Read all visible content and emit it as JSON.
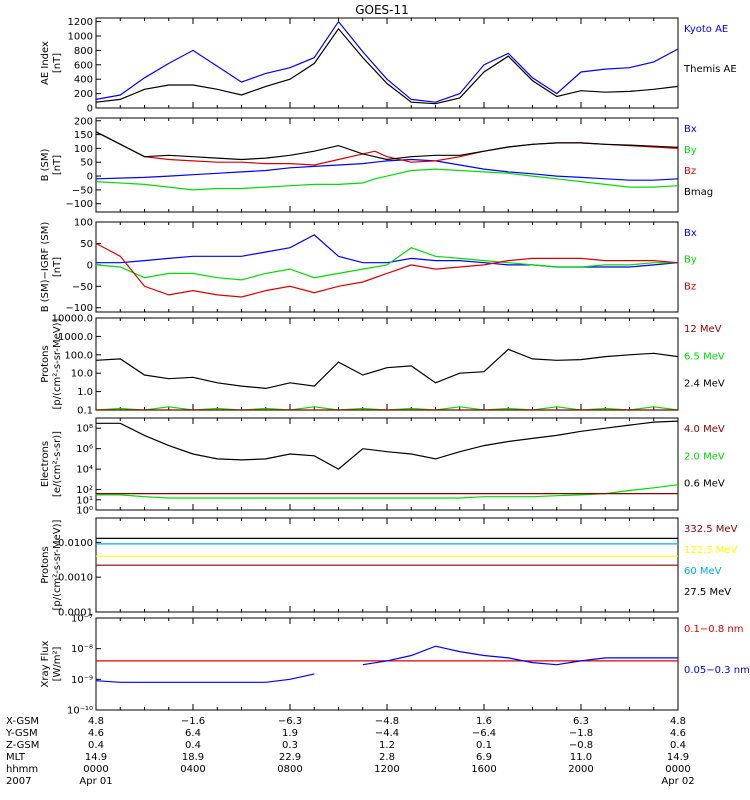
{
  "title": "GOES-11",
  "colors": {
    "black": "#000000",
    "blue": "#0000ff",
    "green": "#00dd00",
    "red": "#dd0000",
    "darkred": "#8b0000",
    "yellow": "#ffff00",
    "cyan": "#00aaff"
  },
  "chart_data": [
    {
      "type": "line",
      "ylabel": [
        "AE Index",
        "[nT]"
      ],
      "yscale": "linear",
      "ylim": [
        0,
        1250
      ],
      "yticks": [
        0,
        200,
        400,
        600,
        800,
        1000,
        1200
      ],
      "ytick_labels": [
        "0",
        "200",
        "400",
        "600",
        "800",
        "1000",
        "1200"
      ],
      "legend": [
        {
          "name": "Kyoto AE",
          "color": "#0000ff"
        },
        {
          "name": "Themis AE",
          "color": "#000000"
        }
      ],
      "x": [
        0,
        1,
        2,
        3,
        4,
        5,
        6,
        7,
        8,
        9,
        10,
        11,
        12,
        13,
        14,
        15,
        16,
        17,
        18,
        19,
        20,
        21,
        22,
        23,
        24
      ],
      "series": [
        {
          "name": "Kyoto AE",
          "color": "#0000ff",
          "values": [
            120,
            180,
            420,
            620,
            800,
            580,
            360,
            480,
            560,
            700,
            1200,
            780,
            400,
            120,
            80,
            200,
            600,
            760,
            420,
            200,
            500,
            540,
            560,
            640,
            820
          ]
        },
        {
          "name": "Themis AE",
          "color": "#000000",
          "values": [
            80,
            120,
            260,
            320,
            320,
            260,
            180,
            300,
            400,
            620,
            1100,
            700,
            340,
            80,
            60,
            140,
            500,
            720,
            380,
            160,
            240,
            220,
            230,
            260,
            300
          ]
        }
      ]
    },
    {
      "type": "line",
      "ylabel": [
        "B (SM)",
        "[nT]"
      ],
      "yscale": "linear",
      "ylim": [
        -130,
        210
      ],
      "yticks": [
        -100,
        -50,
        0,
        50,
        100,
        150,
        200
      ],
      "ytick_labels": [
        "−100",
        "−50",
        "0",
        "50",
        "100",
        "150",
        "200"
      ],
      "legend": [
        {
          "name": "Bx",
          "color": "#0000ff"
        },
        {
          "name": "By",
          "color": "#00dd00"
        },
        {
          "name": "Bz",
          "color": "#dd0000"
        },
        {
          "name": "Bmag",
          "color": "#000000"
        }
      ],
      "x": [
        0,
        2,
        3,
        4,
        5,
        6,
        7,
        8,
        9,
        10,
        11,
        11.5,
        12,
        13,
        14,
        15,
        16,
        17,
        18,
        19,
        20,
        21,
        22,
        23,
        24
      ],
      "series": [
        {
          "name": "Bx",
          "color": "#0000ff",
          "values": [
            -10,
            -5,
            0,
            5,
            10,
            15,
            20,
            30,
            35,
            40,
            45,
            50,
            55,
            60,
            55,
            40,
            25,
            15,
            8,
            0,
            -5,
            -10,
            -15,
            -15,
            -10
          ]
        },
        {
          "name": "By",
          "color": "#00dd00",
          "values": [
            -20,
            -30,
            -40,
            -50,
            -45,
            -45,
            -40,
            -35,
            -30,
            -30,
            -25,
            -10,
            0,
            20,
            25,
            20,
            15,
            10,
            0,
            -10,
            -20,
            -30,
            -40,
            -40,
            -35
          ]
        },
        {
          "name": "Bz",
          "color": "#dd0000",
          "values": [
            160,
            70,
            60,
            55,
            50,
            50,
            45,
            45,
            40,
            60,
            80,
            90,
            70,
            50,
            55,
            70,
            90,
            105,
            115,
            120,
            120,
            115,
            110,
            105,
            100
          ]
        },
        {
          "name": "Bmag",
          "color": "#000000",
          "values": [
            160,
            70,
            75,
            70,
            65,
            60,
            65,
            75,
            90,
            110,
            80,
            70,
            60,
            70,
            75,
            75,
            90,
            105,
            115,
            120,
            120,
            115,
            112,
            108,
            104
          ]
        }
      ]
    },
    {
      "type": "line",
      "ylabel": [
        "B (SM)−IGRF (SM)",
        "[nT]"
      ],
      "yscale": "linear",
      "ylim": [
        -110,
        100
      ],
      "yticks": [
        -100,
        -50,
        0,
        50,
        100
      ],
      "ytick_labels": [
        "−100",
        "−50",
        "0",
        "50",
        "100"
      ],
      "legend": [
        {
          "name": "Bx",
          "color": "#0000ff"
        },
        {
          "name": "By",
          "color": "#00dd00"
        },
        {
          "name": "Bz",
          "color": "#dd0000"
        }
      ],
      "x": [
        0,
        1,
        2,
        3,
        4,
        5,
        6,
        7,
        8,
        9,
        10,
        11,
        12,
        13,
        14,
        15,
        16,
        17,
        18,
        19,
        20,
        21,
        22,
        23,
        24
      ],
      "series": [
        {
          "name": "Bx",
          "color": "#0000ff",
          "values": [
            5,
            5,
            10,
            15,
            20,
            20,
            20,
            30,
            40,
            70,
            20,
            5,
            5,
            15,
            10,
            10,
            5,
            0,
            0,
            -5,
            -5,
            -5,
            -5,
            0,
            5
          ]
        },
        {
          "name": "By",
          "color": "#00dd00",
          "values": [
            0,
            -5,
            -30,
            -20,
            -20,
            -30,
            -35,
            -20,
            -10,
            -30,
            -20,
            -10,
            0,
            40,
            20,
            15,
            10,
            5,
            0,
            -5,
            -5,
            0,
            0,
            5,
            5
          ]
        },
        {
          "name": "Bz",
          "color": "#dd0000",
          "values": [
            50,
            20,
            -50,
            -70,
            -60,
            -70,
            -75,
            -60,
            -50,
            -65,
            -50,
            -40,
            -20,
            0,
            -10,
            -5,
            0,
            10,
            15,
            15,
            15,
            10,
            10,
            10,
            5
          ]
        }
      ]
    },
    {
      "type": "line",
      "ylabel": [
        "Protons",
        "[p/(cm²-s-sr-MeV)]"
      ],
      "yscale": "log",
      "ylim": [
        0.1,
        10000
      ],
      "yticks": [
        0.1,
        1,
        10,
        100,
        1000,
        10000
      ],
      "ytick_labels": [
        "0.1",
        "1.0",
        "10.0",
        "100.0",
        "1000.0",
        "10000.0"
      ],
      "legend": [
        {
          "name": "12 MeV",
          "color": "#8b0000"
        },
        {
          "name": "6.5 MeV",
          "color": "#00dd00"
        },
        {
          "name": "2.4 MeV",
          "color": "#000000"
        }
      ],
      "x": [
        0,
        1,
        2,
        3,
        4,
        5,
        6,
        7,
        8,
        9,
        10,
        11,
        12,
        13,
        14,
        15,
        16,
        17,
        18,
        19,
        20,
        21,
        22,
        23,
        24
      ],
      "series": [
        {
          "name": "2.4 MeV",
          "color": "#000000",
          "values": [
            50,
            60,
            8,
            5,
            6,
            3,
            2,
            1.5,
            3,
            2,
            40,
            8,
            20,
            25,
            3,
            10,
            12,
            200,
            60,
            50,
            55,
            80,
            100,
            120,
            80
          ]
        },
        {
          "name": "6.5 MeV",
          "color": "#00dd00",
          "values": [
            0.1,
            0.12,
            0.1,
            0.15,
            0.1,
            0.12,
            0.1,
            0.12,
            0.1,
            0.15,
            0.1,
            0.12,
            0.1,
            0.12,
            0.1,
            0.15,
            0.1,
            0.12,
            0.1,
            0.15,
            0.1,
            0.12,
            0.1,
            0.15,
            0.1
          ]
        },
        {
          "name": "12 MeV",
          "color": "#8b0000",
          "values": [
            0.1,
            0.1,
            0.1,
            0.1,
            0.1,
            0.1,
            0.1,
            0.1,
            0.1,
            0.1,
            0.1,
            0.1,
            0.1,
            0.1,
            0.1,
            0.1,
            0.1,
            0.1,
            0.1,
            0.1,
            0.1,
            0.1,
            0.1,
            0.1,
            0.1
          ]
        }
      ]
    },
    {
      "type": "line",
      "ylabel": [
        "Electrons",
        "[e/(cm²-s-sr)]"
      ],
      "yscale": "log",
      "ylim": [
        1,
        1000000000
      ],
      "yticks": [
        1,
        10,
        100,
        10000,
        1000000,
        100000000
      ],
      "ytick_labels": [
        "10⁰",
        "10¹",
        "10²",
        "10⁴",
        "10⁶",
        "10⁸"
      ],
      "legend": [
        {
          "name": "4.0 MeV",
          "color": "#8b0000"
        },
        {
          "name": "2.0 MeV",
          "color": "#00dd00"
        },
        {
          "name": "0.6 MeV",
          "color": "#000000"
        }
      ],
      "x": [
        0,
        1,
        2,
        3,
        4,
        5,
        6,
        7,
        8,
        9,
        10,
        11,
        12,
        13,
        14,
        15,
        16,
        17,
        18,
        19,
        20,
        21,
        22,
        23,
        24
      ],
      "series": [
        {
          "name": "0.6 MeV",
          "color": "#000000",
          "values": [
            300000000,
            300000000,
            20000000,
            2000000,
            300000,
            100000,
            80000,
            100000,
            300000,
            200000,
            10000,
            1000000,
            500000,
            300000,
            100000,
            500000,
            2000000,
            5000000,
            10000000,
            20000000,
            50000000,
            100000000,
            200000000,
            400000000,
            500000000
          ]
        },
        {
          "name": "2.0 MeV",
          "color": "#00dd00",
          "values": [
            30,
            30,
            20,
            15,
            15,
            15,
            15,
            15,
            15,
            15,
            15,
            15,
            15,
            15,
            15,
            15,
            20,
            20,
            20,
            25,
            30,
            40,
            80,
            150,
            300
          ]
        },
        {
          "name": "4.0 MeV",
          "color": "#8b0000",
          "values": [
            40,
            40,
            40,
            40,
            40,
            40,
            40,
            40,
            40,
            40,
            40,
            40,
            40,
            40,
            40,
            40,
            40,
            40,
            40,
            40,
            40,
            40,
            40,
            40,
            40
          ]
        }
      ]
    },
    {
      "type": "line",
      "ylabel": [
        "Protons",
        "[p/(cm²-s-sr-MeV)]"
      ],
      "yscale": "log",
      "ylim": [
        0.0001,
        0.05
      ],
      "yticks": [
        0.0001,
        0.001,
        0.01
      ],
      "ytick_labels": [
        "0.0001",
        "0.0010",
        "0.0100"
      ],
      "legend": [
        {
          "name": "332.5 MeV",
          "color": "#8b0000"
        },
        {
          "name": "122.5 MeV",
          "color": "#ffff00"
        },
        {
          "name": "60 MeV",
          "color": "#00aaff"
        },
        {
          "name": "27.5 MeV",
          "color": "#000000"
        }
      ],
      "x": [
        0,
        24
      ],
      "series": [
        {
          "name": "27.5 MeV",
          "color": "#000000",
          "values": [
            0.013,
            0.013
          ]
        },
        {
          "name": "60 MeV",
          "color": "#00aaff",
          "values": [
            0.009,
            0.009
          ]
        },
        {
          "name": "122.5 MeV",
          "color": "#ffff00",
          "values": [
            0.004,
            0.004
          ]
        },
        {
          "name": "332.5 MeV",
          "color": "#8b0000",
          "values": [
            0.0022,
            0.0022
          ]
        }
      ]
    },
    {
      "type": "line",
      "ylabel": [
        "Xray Flux",
        "[W/m²]"
      ],
      "yscale": "log",
      "ylim": [
        1e-10,
        1e-07
      ],
      "yticks": [
        1e-10,
        1e-09,
        1e-08,
        1e-07
      ],
      "ytick_labels": [
        "10⁻¹⁰",
        "10⁻⁹",
        "10⁻⁸",
        "10⁻⁷"
      ],
      "legend": [
        {
          "name": "0.1−0.8 nm",
          "color": "#dd0000"
        },
        {
          "name": "0.05−0.3 nm",
          "color": "#0000ff"
        }
      ],
      "x": [
        0,
        1,
        2,
        3,
        4,
        5,
        6,
        7,
        8,
        9,
        10,
        11,
        12,
        13,
        14,
        15,
        16,
        17,
        18,
        19,
        20,
        21,
        22,
        23,
        24
      ],
      "series": [
        {
          "name": "0.1−0.8 nm",
          "color": "#dd0000",
          "values": [
            4e-09,
            4e-09,
            4e-09,
            4e-09,
            4e-09,
            4e-09,
            4e-09,
            4e-09,
            4e-09,
            4e-09,
            4e-09,
            4e-09,
            4e-09,
            4e-09,
            4e-09,
            4e-09,
            4e-09,
            4e-09,
            4e-09,
            4e-09,
            4e-09,
            4e-09,
            4e-09,
            4e-09,
            4e-09
          ]
        },
        {
          "name": "0.05−0.3 nm",
          "color": "#0000ff",
          "values": [
            9e-10,
            8e-10,
            8e-10,
            8e-10,
            8e-10,
            8e-10,
            8e-10,
            8e-10,
            1e-09,
            1.5e-09,
            null,
            3e-09,
            4e-09,
            6e-09,
            1.2e-08,
            8e-09,
            6e-09,
            5e-09,
            3.5e-09,
            3e-09,
            4e-09,
            5e-09,
            5e-09,
            5e-09,
            5e-09
          ]
        }
      ]
    }
  ],
  "x_axis": {
    "row_labels": [
      "X-GSM",
      "Y-GSM",
      "Z-GSM",
      "MLT",
      "hhmm",
      "2007"
    ],
    "columns": [
      {
        "x": 0,
        "values": [
          "4.8",
          "4.6",
          "0.4",
          "14.9",
          "0000",
          "Apr 01"
        ]
      },
      {
        "x": 4,
        "values": [
          "−1.6",
          "6.4",
          "0.4",
          "18.9",
          "0400",
          ""
        ]
      },
      {
        "x": 8,
        "values": [
          "−6.3",
          "1.9",
          "0.3",
          "22.9",
          "0800",
          ""
        ]
      },
      {
        "x": 12,
        "values": [
          "−4.8",
          "−4.4",
          "1.2",
          "2.8",
          "1200",
          ""
        ]
      },
      {
        "x": 16,
        "values": [
          "1.6",
          "−6.4",
          "0.1",
          "6.9",
          "1600",
          ""
        ]
      },
      {
        "x": 20,
        "values": [
          "6.3",
          "−1.8",
          "−0.8",
          "11.0",
          "2000",
          ""
        ]
      },
      {
        "x": 24,
        "values": [
          "4.8",
          "4.6",
          "0.4",
          "14.9",
          "0000",
          "Apr 02"
        ]
      }
    ]
  }
}
